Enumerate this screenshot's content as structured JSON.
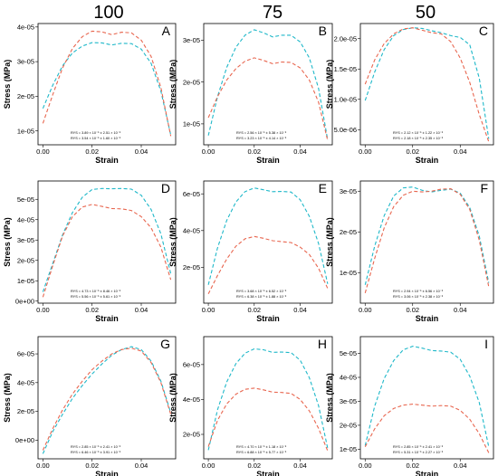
{
  "figure": {
    "column_headers": [
      "100",
      "75",
      "50"
    ]
  },
  "colors": {
    "series_blue": "#1fb8c9",
    "series_red": "#e8664f"
  },
  "chart_data": [
    {
      "type": "line",
      "letter": "A",
      "xlabel": "Strain",
      "ylabel": "Stress (MPa)",
      "xlim": [
        -0.002,
        0.054
      ],
      "ylim": [
        6e-06,
        4.1e-05
      ],
      "xticks": [
        0,
        0.02,
        0.04
      ],
      "xtick_labels": [
        "0.00",
        "0.02",
        "0.04"
      ],
      "yticks": [
        1e-05,
        2e-05,
        3e-05,
        4e-05
      ],
      "ytick_labels": [
        "1e-05",
        "2e-05",
        "3e-05",
        "4e-05"
      ],
      "annotation": [
        "RYS = 3.89 × 10⁻⁵ ± 2.51 × 10⁻⁶",
        "RYS = 3.54 × 10⁻⁵ ± 1.60 × 10⁻⁶"
      ],
      "series": [
        {
          "color": "blue",
          "x": [
            0,
            0.004,
            0.008,
            0.012,
            0.016,
            0.02,
            0.024,
            0.028,
            0.032,
            0.036,
            0.04,
            0.044,
            0.048,
            0.052
          ],
          "y": [
            1.65e-05,
            2.32e-05,
            2.88e-05,
            3.25e-05,
            3.45e-05,
            3.55e-05,
            3.54e-05,
            3.48e-05,
            3.53e-05,
            3.52e-05,
            3.36e-05,
            2.95e-05,
            2.15e-05,
            8.8e-06
          ]
        },
        {
          "color": "red",
          "x": [
            0,
            0.004,
            0.008,
            0.012,
            0.016,
            0.02,
            0.024,
            0.028,
            0.032,
            0.036,
            0.04,
            0.044,
            0.048,
            0.052
          ],
          "y": [
            1.22e-05,
            2.05e-05,
            2.82e-05,
            3.38e-05,
            3.72e-05,
            3.88e-05,
            3.86e-05,
            3.78e-05,
            3.85e-05,
            3.83e-05,
            3.62e-05,
            3.15e-05,
            2.25e-05,
            8.5e-06
          ]
        }
      ]
    },
    {
      "type": "line",
      "letter": "B",
      "xlabel": "Strain",
      "ylabel": "Stress (MPa)",
      "xlim": [
        -0.002,
        0.054
      ],
      "ylim": [
        5e-06,
        3.4e-05
      ],
      "xticks": [
        0,
        0.02,
        0.04
      ],
      "xtick_labels": [
        "0.00",
        "0.02",
        "0.04"
      ],
      "yticks": [
        1e-05,
        2e-05,
        3e-05
      ],
      "ytick_labels": [
        "1e-05",
        "2e-05",
        "3e-05"
      ],
      "annotation": [
        "RYS = 2.56 × 10⁻⁵ ± 5.38 × 10⁻⁶",
        "RYS = 3.23 × 10⁻⁵ ± 4.14 × 10⁻⁶"
      ],
      "series": [
        {
          "color": "blue",
          "x": [
            0,
            0.004,
            0.008,
            0.012,
            0.016,
            0.02,
            0.024,
            0.028,
            0.032,
            0.036,
            0.04,
            0.044,
            0.048,
            0.052
          ],
          "y": [
            7.2e-06,
            1.65e-05,
            2.35e-05,
            2.83e-05,
            3.12e-05,
            3.25e-05,
            3.18e-05,
            3.08e-05,
            3.12e-05,
            3.12e-05,
            2.96e-05,
            2.58e-05,
            1.85e-05,
            6.2e-06
          ]
        },
        {
          "color": "red",
          "x": [
            0,
            0.004,
            0.008,
            0.012,
            0.016,
            0.02,
            0.024,
            0.028,
            0.032,
            0.036,
            0.04,
            0.044,
            0.048,
            0.052
          ],
          "y": [
            1.15e-05,
            1.65e-05,
            2.05e-05,
            2.32e-05,
            2.5e-05,
            2.58e-05,
            2.52e-05,
            2.44e-05,
            2.48e-05,
            2.47e-05,
            2.34e-05,
            2.05e-05,
            1.52e-05,
            6e-06
          ]
        }
      ]
    },
    {
      "type": "line",
      "letter": "C",
      "xlabel": "Strain",
      "ylabel": "Stress (MPa)",
      "xlim": [
        -0.002,
        0.054
      ],
      "ylim": [
        2.5e-06,
        2.25e-05
      ],
      "xticks": [
        0,
        0.02,
        0.04
      ],
      "xtick_labels": [
        "0.00",
        "0.02",
        "0.04"
      ],
      "yticks": [
        5e-06,
        1e-05,
        1.5e-05,
        2e-05
      ],
      "ytick_labels": [
        "5.0e-06",
        "1.0e-05",
        "1.5e-05",
        "2.0e-05"
      ],
      "annotation": [
        "RYS = 2.12 × 10⁻⁵ ± 1.22 × 10⁻⁶",
        "RYS = 2.18 × 10⁻⁵ ± 2.35 × 10⁻⁶"
      ],
      "series": [
        {
          "color": "blue",
          "x": [
            0,
            0.004,
            0.008,
            0.012,
            0.016,
            0.02,
            0.024,
            0.028,
            0.032,
            0.036,
            0.04,
            0.044,
            0.048,
            0.052
          ],
          "y": [
            9.8e-06,
            1.45e-05,
            1.82e-05,
            2.05e-05,
            2.15e-05,
            2.18e-05,
            2.17e-05,
            2.13e-05,
            2.1e-05,
            2.05e-05,
            2.02e-05,
            1.9e-05,
            1.35e-05,
            3.5e-06
          ]
        },
        {
          "color": "red",
          "x": [
            0,
            0.004,
            0.008,
            0.012,
            0.016,
            0.02,
            0.024,
            0.028,
            0.032,
            0.036,
            0.04,
            0.044,
            0.048,
            0.052
          ],
          "y": [
            1.25e-05,
            1.65e-05,
            1.92e-05,
            2.08e-05,
            2.16e-05,
            2.18e-05,
            2.14e-05,
            2.1e-05,
            2.08e-05,
            1.95e-05,
            1.68e-05,
            1.28e-05,
            7.5e-06,
            3e-06
          ]
        }
      ]
    },
    {
      "type": "line",
      "letter": "D",
      "xlabel": "Strain",
      "ylabel": "Stress (MPa)",
      "xlim": [
        -0.002,
        0.054
      ],
      "ylim": [
        -1e-06,
        5.9e-05
      ],
      "xticks": [
        0,
        0.02,
        0.04
      ],
      "xtick_labels": [
        "0.00",
        "0.02",
        "0.04"
      ],
      "yticks": [
        0,
        1e-05,
        2e-05,
        3e-05,
        4e-05,
        5e-05
      ],
      "ytick_labels": [
        "0e+00",
        "1e-05",
        "2e-05",
        "3e-05",
        "4e-05",
        "5e-05"
      ],
      "annotation": [
        "RYS = 4.73 × 10⁻⁵ ± 8.46 × 10⁻⁶",
        "RYS = 5.56 × 10⁻⁵ ± 5.61 × 10⁻⁶"
      ],
      "series": [
        {
          "color": "blue",
          "x": [
            0,
            0.004,
            0.008,
            0.012,
            0.016,
            0.02,
            0.024,
            0.028,
            0.032,
            0.036,
            0.04,
            0.044,
            0.048,
            0.052
          ],
          "y": [
            4.5e-06,
            1.85e-05,
            3.25e-05,
            4.35e-05,
            5.1e-05,
            5.48e-05,
            5.53e-05,
            5.52e-05,
            5.53e-05,
            5.5e-05,
            5.2e-05,
            4.5e-05,
            3.3e-05,
            1.35e-05
          ]
        },
        {
          "color": "red",
          "x": [
            0,
            0.004,
            0.008,
            0.012,
            0.016,
            0.02,
            0.024,
            0.028,
            0.032,
            0.036,
            0.04,
            0.044,
            0.048,
            0.052
          ],
          "y": [
            2e-06,
            1.75e-05,
            3.2e-05,
            4.15e-05,
            4.62e-05,
            4.75e-05,
            4.65e-05,
            4.55e-05,
            4.53e-05,
            4.45e-05,
            4.15e-05,
            3.6e-05,
            2.65e-05,
            1.05e-05
          ]
        }
      ]
    },
    {
      "type": "line",
      "letter": "E",
      "xlabel": "Strain",
      "ylabel": "Stress (MPa)",
      "xlim": [
        -0.002,
        0.054
      ],
      "ylim": [
        5e-07,
        6.7e-05
      ],
      "xticks": [
        0,
        0.02,
        0.04
      ],
      "xtick_labels": [
        "0.00",
        "0.02",
        "0.04"
      ],
      "yticks": [
        2e-05,
        4e-05,
        6e-05
      ],
      "ytick_labels": [
        "2e-05",
        "4e-05",
        "6e-05"
      ],
      "annotation": [
        "RYS = 3.68 × 10⁻⁵ ± 6.52 × 10⁻⁶",
        "RYS = 6.38 × 10⁻⁵ ± 1.88 × 10⁻⁶"
      ],
      "series": [
        {
          "color": "blue",
          "x": [
            0,
            0.004,
            0.008,
            0.012,
            0.016,
            0.02,
            0.024,
            0.028,
            0.032,
            0.036,
            0.04,
            0.044,
            0.048,
            0.052
          ],
          "y": [
            1.05e-05,
            3.05e-05,
            4.55e-05,
            5.55e-05,
            6.12e-05,
            6.32e-05,
            6.22e-05,
            6.12e-05,
            6.13e-05,
            6.1e-05,
            5.68e-05,
            4.78e-05,
            3.3e-05,
            1.1e-05
          ]
        },
        {
          "color": "red",
          "x": [
            0,
            0.004,
            0.008,
            0.012,
            0.016,
            0.02,
            0.024,
            0.028,
            0.032,
            0.036,
            0.04,
            0.044,
            0.048,
            0.052
          ],
          "y": [
            5.5e-06,
            1.55e-05,
            2.45e-05,
            3.15e-05,
            3.55e-05,
            3.68e-05,
            3.58e-05,
            3.45e-05,
            3.4e-05,
            3.35e-05,
            3.1e-05,
            2.7e-05,
            1.95e-05,
            8.5e-06
          ]
        }
      ]
    },
    {
      "type": "line",
      "letter": "F",
      "xlabel": "Strain",
      "ylabel": "Stress (MPa)",
      "xlim": [
        -0.002,
        0.054
      ],
      "ylim": [
        2.5e-06,
        3.25e-05
      ],
      "xticks": [
        0,
        0.02,
        0.04
      ],
      "xtick_labels": [
        "0.00",
        "0.02",
        "0.04"
      ],
      "yticks": [
        1e-05,
        2e-05,
        3e-05
      ],
      "ytick_labels": [
        "1e-05",
        "2e-05",
        "3e-05"
      ],
      "annotation": [
        "RYS = 2.94 × 10⁻⁵ ± 6.56 × 10⁻⁶",
        "RYS = 3.06 × 10⁻⁵ ± 2.38 × 10⁻⁶"
      ],
      "series": [
        {
          "color": "blue",
          "x": [
            0,
            0.004,
            0.008,
            0.012,
            0.016,
            0.02,
            0.024,
            0.028,
            0.032,
            0.036,
            0.04,
            0.044,
            0.048,
            0.052
          ],
          "y": [
            7e-06,
            1.65e-05,
            2.4e-05,
            2.88e-05,
            3.08e-05,
            3.1e-05,
            3.02e-05,
            2.98e-05,
            3.02e-05,
            3.05e-05,
            2.95e-05,
            2.6e-05,
            1.9e-05,
            7.5e-06
          ]
        },
        {
          "color": "red",
          "x": [
            0,
            0.004,
            0.008,
            0.012,
            0.016,
            0.02,
            0.024,
            0.028,
            0.032,
            0.036,
            0.04,
            0.044,
            0.048,
            0.052
          ],
          "y": [
            5e-06,
            1.35e-05,
            2.1e-05,
            2.62e-05,
            2.9e-05,
            3e-05,
            2.98e-05,
            3e-05,
            3.05e-05,
            3.06e-05,
            2.92e-05,
            2.55e-05,
            1.8e-05,
            6.5e-06
          ]
        }
      ]
    },
    {
      "type": "line",
      "letter": "G",
      "xlabel": "Strain",
      "ylabel": "Stress (MPa)",
      "xlim": [
        -0.002,
        0.054
      ],
      "ylim": [
        -1.3e-05,
        7.2e-05
      ],
      "xticks": [
        0,
        0.02,
        0.04
      ],
      "xtick_labels": [
        "0.00",
        "0.02",
        "0.04"
      ],
      "yticks": [
        0,
        2e-05,
        4e-05,
        6e-05
      ],
      "ytick_labels": [
        "0e+00",
        "2e-05",
        "4e-05",
        "6e-05"
      ],
      "annotation": [
        "RYS = 2.85 × 10⁻⁵ ± 2.41 × 10⁻⁶",
        "RYS = 6.46 × 10⁻⁵ ± 3.91 × 10⁻⁶"
      ],
      "series": [
        {
          "color": "blue",
          "x": [
            0,
            0.004,
            0.008,
            0.012,
            0.016,
            0.02,
            0.024,
            0.028,
            0.032,
            0.036,
            0.04,
            0.044,
            0.048,
            0.052
          ],
          "y": [
            -9.5e-06,
            6e-06,
            1.8e-05,
            2.9e-05,
            3.8e-05,
            4.6e-05,
            5.3e-05,
            5.9e-05,
            6.3e-05,
            6.5e-05,
            6.3e-05,
            5.5e-05,
            4.1e-05,
            1.9e-05
          ]
        },
        {
          "color": "red",
          "x": [
            0,
            0.004,
            0.008,
            0.012,
            0.016,
            0.02,
            0.024,
            0.028,
            0.032,
            0.036,
            0.04,
            0.044,
            0.048,
            0.052
          ],
          "y": [
            -7e-06,
            8e-06,
            2.1e-05,
            3.2e-05,
            4.1e-05,
            4.9e-05,
            5.5e-05,
            6e-05,
            6.3e-05,
            6.4e-05,
            6.2e-05,
            5.4e-05,
            4e-05,
            1.8e-05
          ]
        }
      ]
    },
    {
      "type": "line",
      "letter": "H",
      "xlabel": "Strain",
      "ylabel": "Stress (MPa)",
      "xlim": [
        -0.002,
        0.054
      ],
      "ylim": [
        6e-06,
        7.6e-05
      ],
      "xticks": [
        0,
        0.02,
        0.04
      ],
      "xtick_labels": [
        "0.00",
        "0.02",
        "0.04"
      ],
      "yticks": [
        2e-05,
        4e-05,
        6e-05
      ],
      "ytick_labels": [
        "2e-05",
        "4e-05",
        "6e-05"
      ],
      "annotation": [
        "RYS = 4.70 × 10⁻⁵ ± 1.18 × 10⁻⁵",
        "RYS = 6.88 × 10⁻⁵ ± 5.77 × 10⁻⁶"
      ],
      "series": [
        {
          "color": "blue",
          "x": [
            0,
            0.004,
            0.008,
            0.012,
            0.016,
            0.02,
            0.024,
            0.028,
            0.032,
            0.036,
            0.04,
            0.044,
            0.048,
            0.052
          ],
          "y": [
            1.1e-05,
            3.4e-05,
            5e-05,
            6.05e-05,
            6.65e-05,
            6.9e-05,
            6.85e-05,
            6.7e-05,
            6.72e-05,
            6.68e-05,
            6.25e-05,
            5.25e-05,
            3.65e-05,
            1.2e-05
          ]
        },
        {
          "color": "red",
          "x": [
            0,
            0.004,
            0.008,
            0.012,
            0.016,
            0.02,
            0.024,
            0.028,
            0.032,
            0.036,
            0.04,
            0.044,
            0.048,
            0.052
          ],
          "y": [
            1.3e-05,
            2.8e-05,
            3.75e-05,
            4.3e-05,
            4.58e-05,
            4.65e-05,
            4.55e-05,
            4.42e-05,
            4.4e-05,
            4.35e-05,
            4e-05,
            3.35e-05,
            2.35e-05,
            1.05e-05
          ]
        }
      ]
    },
    {
      "type": "line",
      "letter": "I",
      "xlabel": "Strain",
      "ylabel": "Stress (MPa)",
      "xlim": [
        -0.002,
        0.054
      ],
      "ylim": [
        6e-06,
        5.7e-05
      ],
      "xticks": [
        0,
        0.02,
        0.04
      ],
      "xtick_labels": [
        "0.00",
        "0.02",
        "0.04"
      ],
      "yticks": [
        1e-05,
        2e-05,
        3e-05,
        4e-05,
        5e-05
      ],
      "ytick_labels": [
        "1e-05",
        "2e-05",
        "3e-05",
        "4e-05",
        "5e-05"
      ],
      "annotation": [
        "RYS = 2.85 × 10⁻⁵ ± 2.41 × 10⁻⁶",
        "RYS = 5.31 × 10⁻⁵ ± 2.27 × 10⁻⁶"
      ],
      "series": [
        {
          "color": "blue",
          "x": [
            0,
            0.004,
            0.008,
            0.012,
            0.016,
            0.02,
            0.024,
            0.028,
            0.032,
            0.036,
            0.04,
            0.044,
            0.048,
            0.052
          ],
          "y": [
            1.15e-05,
            2.8e-05,
            3.95e-05,
            4.7e-05,
            5.15e-05,
            5.3e-05,
            5.22e-05,
            5.12e-05,
            5.1e-05,
            5.05e-05,
            4.75e-05,
            4.05e-05,
            2.95e-05,
            1.1e-05
          ]
        },
        {
          "color": "red",
          "x": [
            0,
            0.004,
            0.008,
            0.012,
            0.016,
            0.02,
            0.024,
            0.028,
            0.032,
            0.036,
            0.04,
            0.044,
            0.048,
            0.052
          ],
          "y": [
            1.1e-05,
            1.85e-05,
            2.4e-05,
            2.7e-05,
            2.84e-05,
            2.88e-05,
            2.84e-05,
            2.8e-05,
            2.82e-05,
            2.8e-05,
            2.62e-05,
            2.25e-05,
            1.65e-05,
            8.5e-06
          ]
        }
      ]
    }
  ]
}
